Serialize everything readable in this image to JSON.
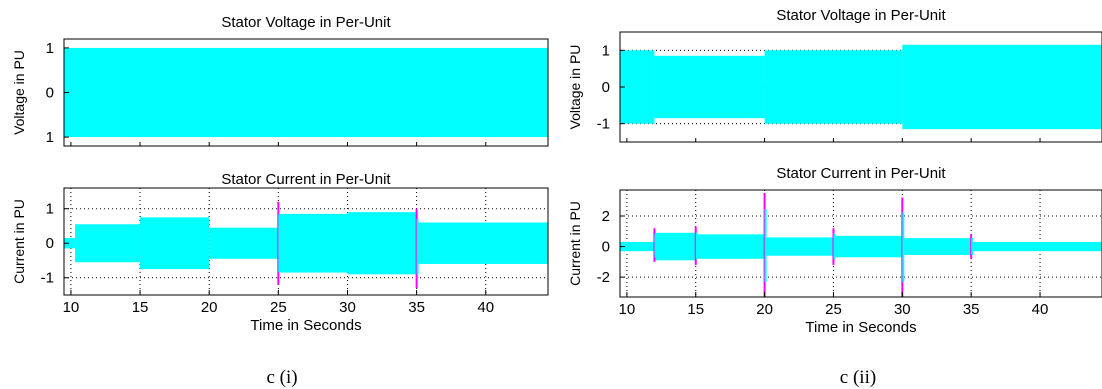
{
  "figure": {
    "captions": [
      "c (i)",
      "c (ii)"
    ]
  },
  "chart_data": [
    {
      "type": "area",
      "title": "Stator Voltage in Per-Unit",
      "xlabel": "",
      "ylabel": "Voltage in PU",
      "xlim": [
        9.5,
        44.5
      ],
      "ylim": [
        -1.2,
        1.2
      ],
      "xticks": [],
      "yticks": [
        -1,
        0,
        1
      ],
      "ytick_labels": [
        "1",
        "0",
        "1"
      ],
      "grid": false,
      "colors": {
        "envelope": "#00ffff",
        "spike": "#ff00ff"
      },
      "series": [
        {
          "segments": [
            {
              "x0": 9.5,
              "x1": 44.5,
              "amp": 1.0
            }
          ],
          "spikes": []
        }
      ]
    },
    {
      "type": "area",
      "title": "Stator Current in Per-Unit",
      "xlabel": "Time in Seconds",
      "ylabel": "Current in PU",
      "xlim": [
        9.5,
        44.5
      ],
      "ylim": [
        -1.5,
        1.6
      ],
      "xticks": [
        10,
        15,
        20,
        25,
        30,
        35,
        40
      ],
      "yticks": [
        -1,
        0,
        1
      ],
      "grid": true,
      "colors": {
        "envelope": "#00ffff",
        "spike": "#ff00ff"
      },
      "series": [
        {
          "segments": [
            {
              "x0": 9.5,
              "x1": 10.3,
              "amp": 0.15
            },
            {
              "x0": 10.3,
              "x1": 15.0,
              "amp": 0.55
            },
            {
              "x0": 15.0,
              "x1": 20.0,
              "amp": 0.75
            },
            {
              "x0": 20.0,
              "x1": 25.0,
              "amp": 0.45
            },
            {
              "x0": 25.0,
              "x1": 30.0,
              "amp": 0.85
            },
            {
              "x0": 30.0,
              "x1": 35.0,
              "amp": 0.9
            },
            {
              "x0": 35.0,
              "x1": 44.5,
              "amp": 0.6
            }
          ],
          "spikes": [
            {
              "x": 25.0,
              "max": 1.2,
              "min": -1.2
            },
            {
              "x": 35.0,
              "max": 1.0,
              "min": -1.3
            }
          ]
        }
      ]
    },
    {
      "type": "area",
      "title": "Stator Voltage in Per-Unit",
      "xlabel": "",
      "ylabel": "Voltage in PU",
      "xlim": [
        9.5,
        44.5
      ],
      "ylim": [
        -1.5,
        1.5
      ],
      "xticks": [],
      "yticks": [
        -1,
        0,
        1
      ],
      "grid": true,
      "colors": {
        "envelope": "#00ffff",
        "spike": "#ff00ff"
      },
      "series": [
        {
          "segments": [
            {
              "x0": 9.5,
              "x1": 12.0,
              "amp": 1.0
            },
            {
              "x0": 12.0,
              "x1": 20.0,
              "amp": 0.85
            },
            {
              "x0": 20.0,
              "x1": 30.0,
              "amp": 1.0
            },
            {
              "x0": 30.0,
              "x1": 44.5,
              "amp": 1.15
            }
          ],
          "spikes": []
        }
      ]
    },
    {
      "type": "area",
      "title": "Stator Current in Per-Unit",
      "xlabel": "Time in Seconds",
      "ylabel": "Current in PU",
      "xlim": [
        9.5,
        44.5
      ],
      "ylim": [
        -3.3,
        3.7
      ],
      "xticks": [
        10,
        15,
        20,
        25,
        30,
        35,
        40
      ],
      "yticks": [
        -2,
        0,
        2
      ],
      "grid": true,
      "colors": {
        "envelope": "#00ffff",
        "spike": "#ff00ff"
      },
      "series": [
        {
          "segments": [
            {
              "x0": 9.5,
              "x1": 12.0,
              "amp": 0.3
            },
            {
              "x0": 12.0,
              "x1": 15.0,
              "amp": 0.9
            },
            {
              "x0": 15.0,
              "x1": 20.0,
              "amp": 0.8
            },
            {
              "x0": 20.0,
              "x1": 25.0,
              "amp": 0.6
            },
            {
              "x0": 25.0,
              "x1": 30.0,
              "amp": 0.7
            },
            {
              "x0": 30.0,
              "x1": 35.0,
              "amp": 0.55
            },
            {
              "x0": 35.0,
              "x1": 44.5,
              "amp": 0.3
            }
          ],
          "spikes": [
            {
              "x": 12.0,
              "max": 1.2,
              "min": -1.0
            },
            {
              "x": 15.0,
              "max": 1.3,
              "min": -1.2
            },
            {
              "x": 20.0,
              "max": 3.5,
              "min": -3.3
            },
            {
              "x": 25.0,
              "max": 1.2,
              "min": -1.2
            },
            {
              "x": 30.0,
              "max": 3.2,
              "min": -3.3
            },
            {
              "x": 35.0,
              "max": 0.8,
              "min": -0.8
            }
          ]
        }
      ]
    }
  ]
}
